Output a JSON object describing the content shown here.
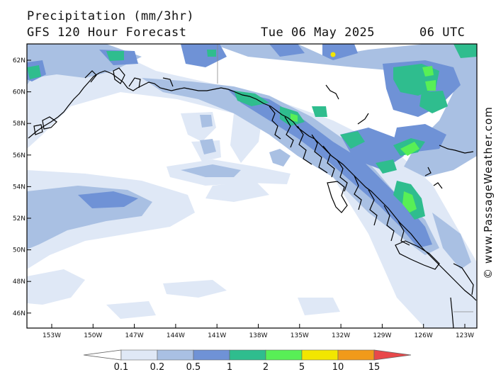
{
  "header": {
    "title": "Precipitation (mm/3hr)",
    "subtitle": "GFS 120 Hour Forecast",
    "date": "Tue 06 May 2025",
    "time": "06 UTC"
  },
  "credit": "© www.PassageWeather.com",
  "axes": {
    "lat_labels": [
      "62N",
      "60N",
      "58N",
      "56N",
      "54N",
      "52N",
      "50N",
      "48N",
      "46N"
    ],
    "lon_labels": [
      "153W",
      "150W",
      "147W",
      "144W",
      "141W",
      "138W",
      "135W",
      "132W",
      "129W",
      "126W",
      "123W"
    ]
  },
  "legend": {
    "thresholds": [
      "0.1",
      "0.2",
      "0.5",
      "1",
      "2",
      "5",
      "10",
      "15"
    ],
    "colors": [
      "#ffffff",
      "#dfe8f6",
      "#a9c0e3",
      "#6f92d6",
      "#2fbd8e",
      "#58ef56",
      "#f2e600",
      "#f19a1a",
      "#e8484a"
    ]
  },
  "map_colors": {
    "ocean": "#ffffff",
    "coast": "#000000",
    "border": "#888888"
  }
}
